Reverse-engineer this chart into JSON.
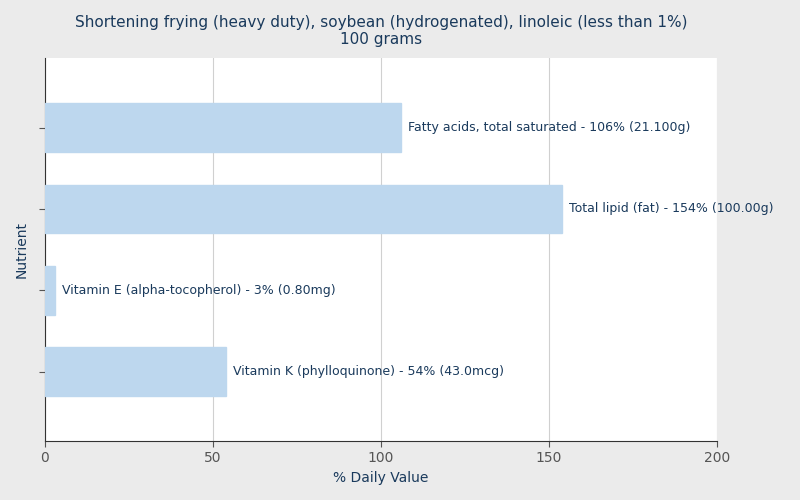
{
  "title": "Shortening frying (heavy duty), soybean (hydrogenated), linoleic (less than 1%)\n100 grams",
  "xlabel": "% Daily Value",
  "ylabel": "Nutrient",
  "outer_bg": "#ebebeb",
  "plot_bg": "#ffffff",
  "bar_color": "#bdd7ee",
  "bars": [
    {
      "label": "Fatty acids, total saturated - 106% (21.100g)",
      "value": 106
    },
    {
      "label": "Total lipid (fat) - 154% (100.00g)",
      "value": 154
    },
    {
      "label": "Vitamin E (alpha-tocopherol) - 3% (0.80mg)",
      "value": 3
    },
    {
      "label": "Vitamin K (phylloquinone) - 54% (43.0mcg)",
      "value": 54
    }
  ],
  "xlim": [
    0,
    200
  ],
  "xticks": [
    0,
    50,
    100,
    150,
    200
  ],
  "title_fontsize": 11,
  "label_fontsize": 9,
  "axis_label_fontsize": 10,
  "text_color": "#1a3a5c",
  "bar_height": 0.6,
  "grid_color": "#d0d0d0",
  "tick_color": "#555555",
  "spine_color": "#333333"
}
